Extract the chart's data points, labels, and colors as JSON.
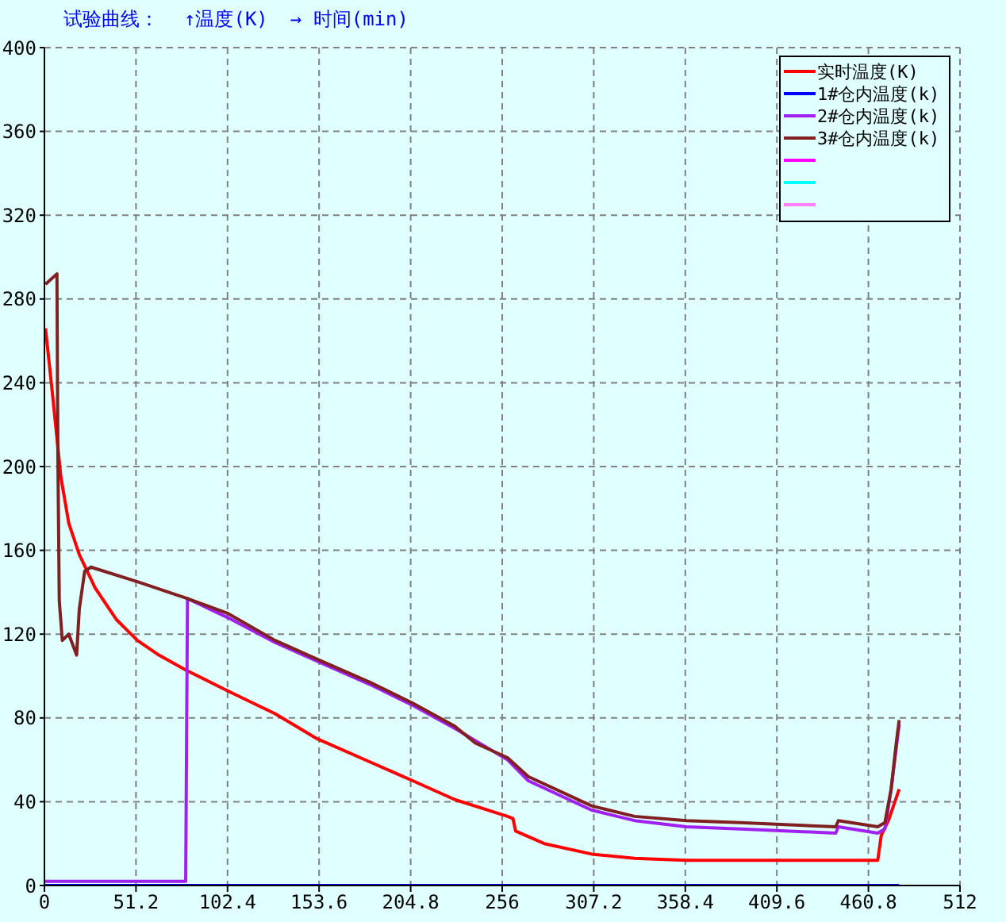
{
  "chart_data": {
    "type": "line",
    "title": "试验曲线：",
    "ylabel": "↑温度(K)",
    "xlabel": "→ 时间(min)",
    "xlim": [
      0,
      512
    ],
    "xticks": [
      0,
      51.2,
      102.4,
      153.6,
      204.8,
      256,
      307.2,
      358.4,
      409.6,
      460.8,
      512
    ],
    "ylim": [
      0,
      400
    ],
    "yticks": [
      0,
      40,
      80,
      120,
      160,
      200,
      240,
      280,
      320,
      360,
      400
    ],
    "grid": true,
    "legend": "top right",
    "marker": "none",
    "line_style": "solid",
    "series": [
      {
        "name": "实时温度(K)",
        "color": "#ff0000",
        "x": [
          0.6,
          4.7,
          9.2,
          13.6,
          19.5,
          28.4,
          40.2,
          52,
          64,
          78.7,
          102.3,
          129,
          152.6,
          182,
          206,
          229.5,
          259,
          262,
          263.5,
          279.5,
          306,
          330,
          359,
          466,
          468,
          472,
          478
        ],
        "values": [
          266,
          233,
          195,
          173,
          158,
          142,
          127,
          117,
          110,
          103,
          93,
          82,
          70,
          59,
          50,
          41,
          33,
          32,
          26,
          20,
          15,
          13,
          12,
          12,
          24,
          31,
          46
        ]
      },
      {
        "name": "1#仓内温度(k)",
        "color": "#0000ff",
        "x": [
          0,
          478
        ],
        "values": [
          0,
          0
        ]
      },
      {
        "name": "2#仓内温度(k)",
        "color": "#a020f0",
        "x": [
          0,
          79,
          80,
          102.3,
          129,
          152.6,
          182,
          206,
          229.5,
          259,
          270.6,
          306,
          330,
          359,
          389,
          442.5,
          444,
          466,
          470,
          473.5,
          478
        ],
        "values": [
          2,
          2,
          137,
          128,
          116,
          107,
          96,
          86,
          75,
          60,
          50,
          36,
          31,
          28,
          27,
          25,
          28,
          25,
          27,
          46,
          77
        ]
      },
      {
        "name": "3#仓内温度(k)",
        "color": "#802020",
        "x": [
          0.6,
          7,
          7.5,
          8.3,
          10,
          13.6,
          18,
          19.5,
          22.5,
          26,
          52,
          80,
          102.3,
          129,
          152.6,
          182,
          206,
          229.5,
          241,
          259,
          270.6,
          306,
          330,
          359,
          389,
          442.5,
          444,
          466,
          470,
          473.5,
          476.5,
          478
        ],
        "values": [
          287,
          292,
          208,
          136,
          117,
          120,
          110,
          132,
          150,
          152,
          145,
          137,
          130,
          117,
          108,
          97,
          87,
          76,
          68,
          61,
          52,
          38,
          33,
          31,
          30,
          28,
          31,
          28,
          30,
          46,
          69,
          79
        ]
      },
      {
        "color": "#ff00ff"
      },
      {
        "color": "#00ffff"
      },
      {
        "color": "#ff80ff"
      }
    ]
  }
}
